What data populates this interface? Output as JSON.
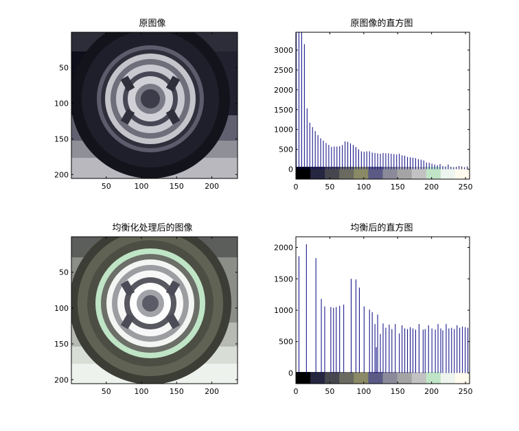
{
  "panels": {
    "original_image": {
      "title": "原图像"
    },
    "equalized_image": {
      "title": "均衡化处理后的图像"
    }
  },
  "image_axes": {
    "x_ticks": [
      50,
      100,
      150,
      200
    ],
    "y_ticks": [
      50,
      100,
      150,
      200
    ],
    "x_range": [
      0.5,
      236.5
    ],
    "y_range": [
      0.5,
      205.5
    ]
  },
  "colors": {
    "bar": "#00007f",
    "axis": "#000000",
    "colorbar": [
      "#000000",
      "#262640",
      "#46464e",
      "#6a6a60",
      "#8a8a66",
      "#5a5a84",
      "#8a8a9a",
      "#a4a4a4",
      "#c2c2c2",
      "#bfe5c6",
      "#eef4ee",
      "#fffbee"
    ]
  },
  "chart_data": [
    {
      "type": "bar",
      "title": "原图像的直方图",
      "xlim": [
        0,
        256
      ],
      "ylim": [
        -250,
        3450
      ],
      "xticks": [
        0,
        50,
        100,
        150,
        200,
        250
      ],
      "yticks": [
        0,
        500,
        1000,
        1500,
        2000,
        2500,
        3000
      ],
      "x": [
        0,
        4,
        8,
        12,
        16,
        20,
        24,
        28,
        32,
        36,
        40,
        44,
        48,
        52,
        56,
        60,
        64,
        68,
        72,
        76,
        80,
        84,
        88,
        92,
        96,
        100,
        104,
        108,
        112,
        116,
        120,
        124,
        128,
        132,
        136,
        140,
        144,
        148,
        152,
        156,
        160,
        164,
        168,
        172,
        176,
        180,
        184,
        188,
        192,
        196,
        200,
        204,
        208,
        212,
        216,
        220,
        224,
        228,
        232,
        236,
        240,
        244,
        248,
        252,
        255
      ],
      "values": [
        3450,
        3450,
        3450,
        3150,
        1530,
        1170,
        1060,
        960,
        860,
        780,
        720,
        660,
        610,
        560,
        570,
        570,
        580,
        610,
        700,
        690,
        650,
        610,
        560,
        500,
        450,
        440,
        450,
        450,
        420,
        410,
        400,
        390,
        410,
        400,
        400,
        390,
        380,
        370,
        390,
        350,
        340,
        310,
        300,
        290,
        280,
        250,
        240,
        220,
        170,
        160,
        140,
        120,
        100,
        130,
        80,
        70,
        120,
        60,
        50,
        60,
        80,
        70,
        50,
        70,
        0
      ]
    },
    {
      "type": "bar",
      "title": "均衡后的直方图",
      "xlim": [
        0,
        256
      ],
      "ylim": [
        -170,
        2170
      ],
      "xticks": [
        0,
        50,
        100,
        150,
        200,
        250
      ],
      "yticks": [
        0,
        500,
        1000,
        1500,
        2000
      ],
      "x": [
        4,
        15,
        29,
        37,
        42,
        51,
        55,
        59,
        64,
        70,
        81,
        88,
        93,
        100,
        108,
        112,
        116,
        118,
        120,
        124,
        128,
        132,
        137,
        141,
        146,
        152,
        156,
        160,
        164,
        168,
        172,
        176,
        181,
        187,
        190,
        195,
        200,
        205,
        209,
        213,
        216,
        221,
        225,
        229,
        233,
        237,
        241,
        245,
        249,
        253
      ],
      "values": [
        1860,
        2050,
        1830,
        1180,
        1060,
        1050,
        1040,
        1050,
        1070,
        1090,
        1500,
        1490,
        1360,
        1060,
        1010,
        970,
        780,
        410,
        930,
        620,
        790,
        720,
        770,
        700,
        780,
        630,
        760,
        710,
        700,
        730,
        710,
        690,
        780,
        690,
        700,
        760,
        710,
        690,
        780,
        710,
        680,
        780,
        710,
        720,
        700,
        760,
        720,
        740,
        730,
        720
      ]
    }
  ]
}
